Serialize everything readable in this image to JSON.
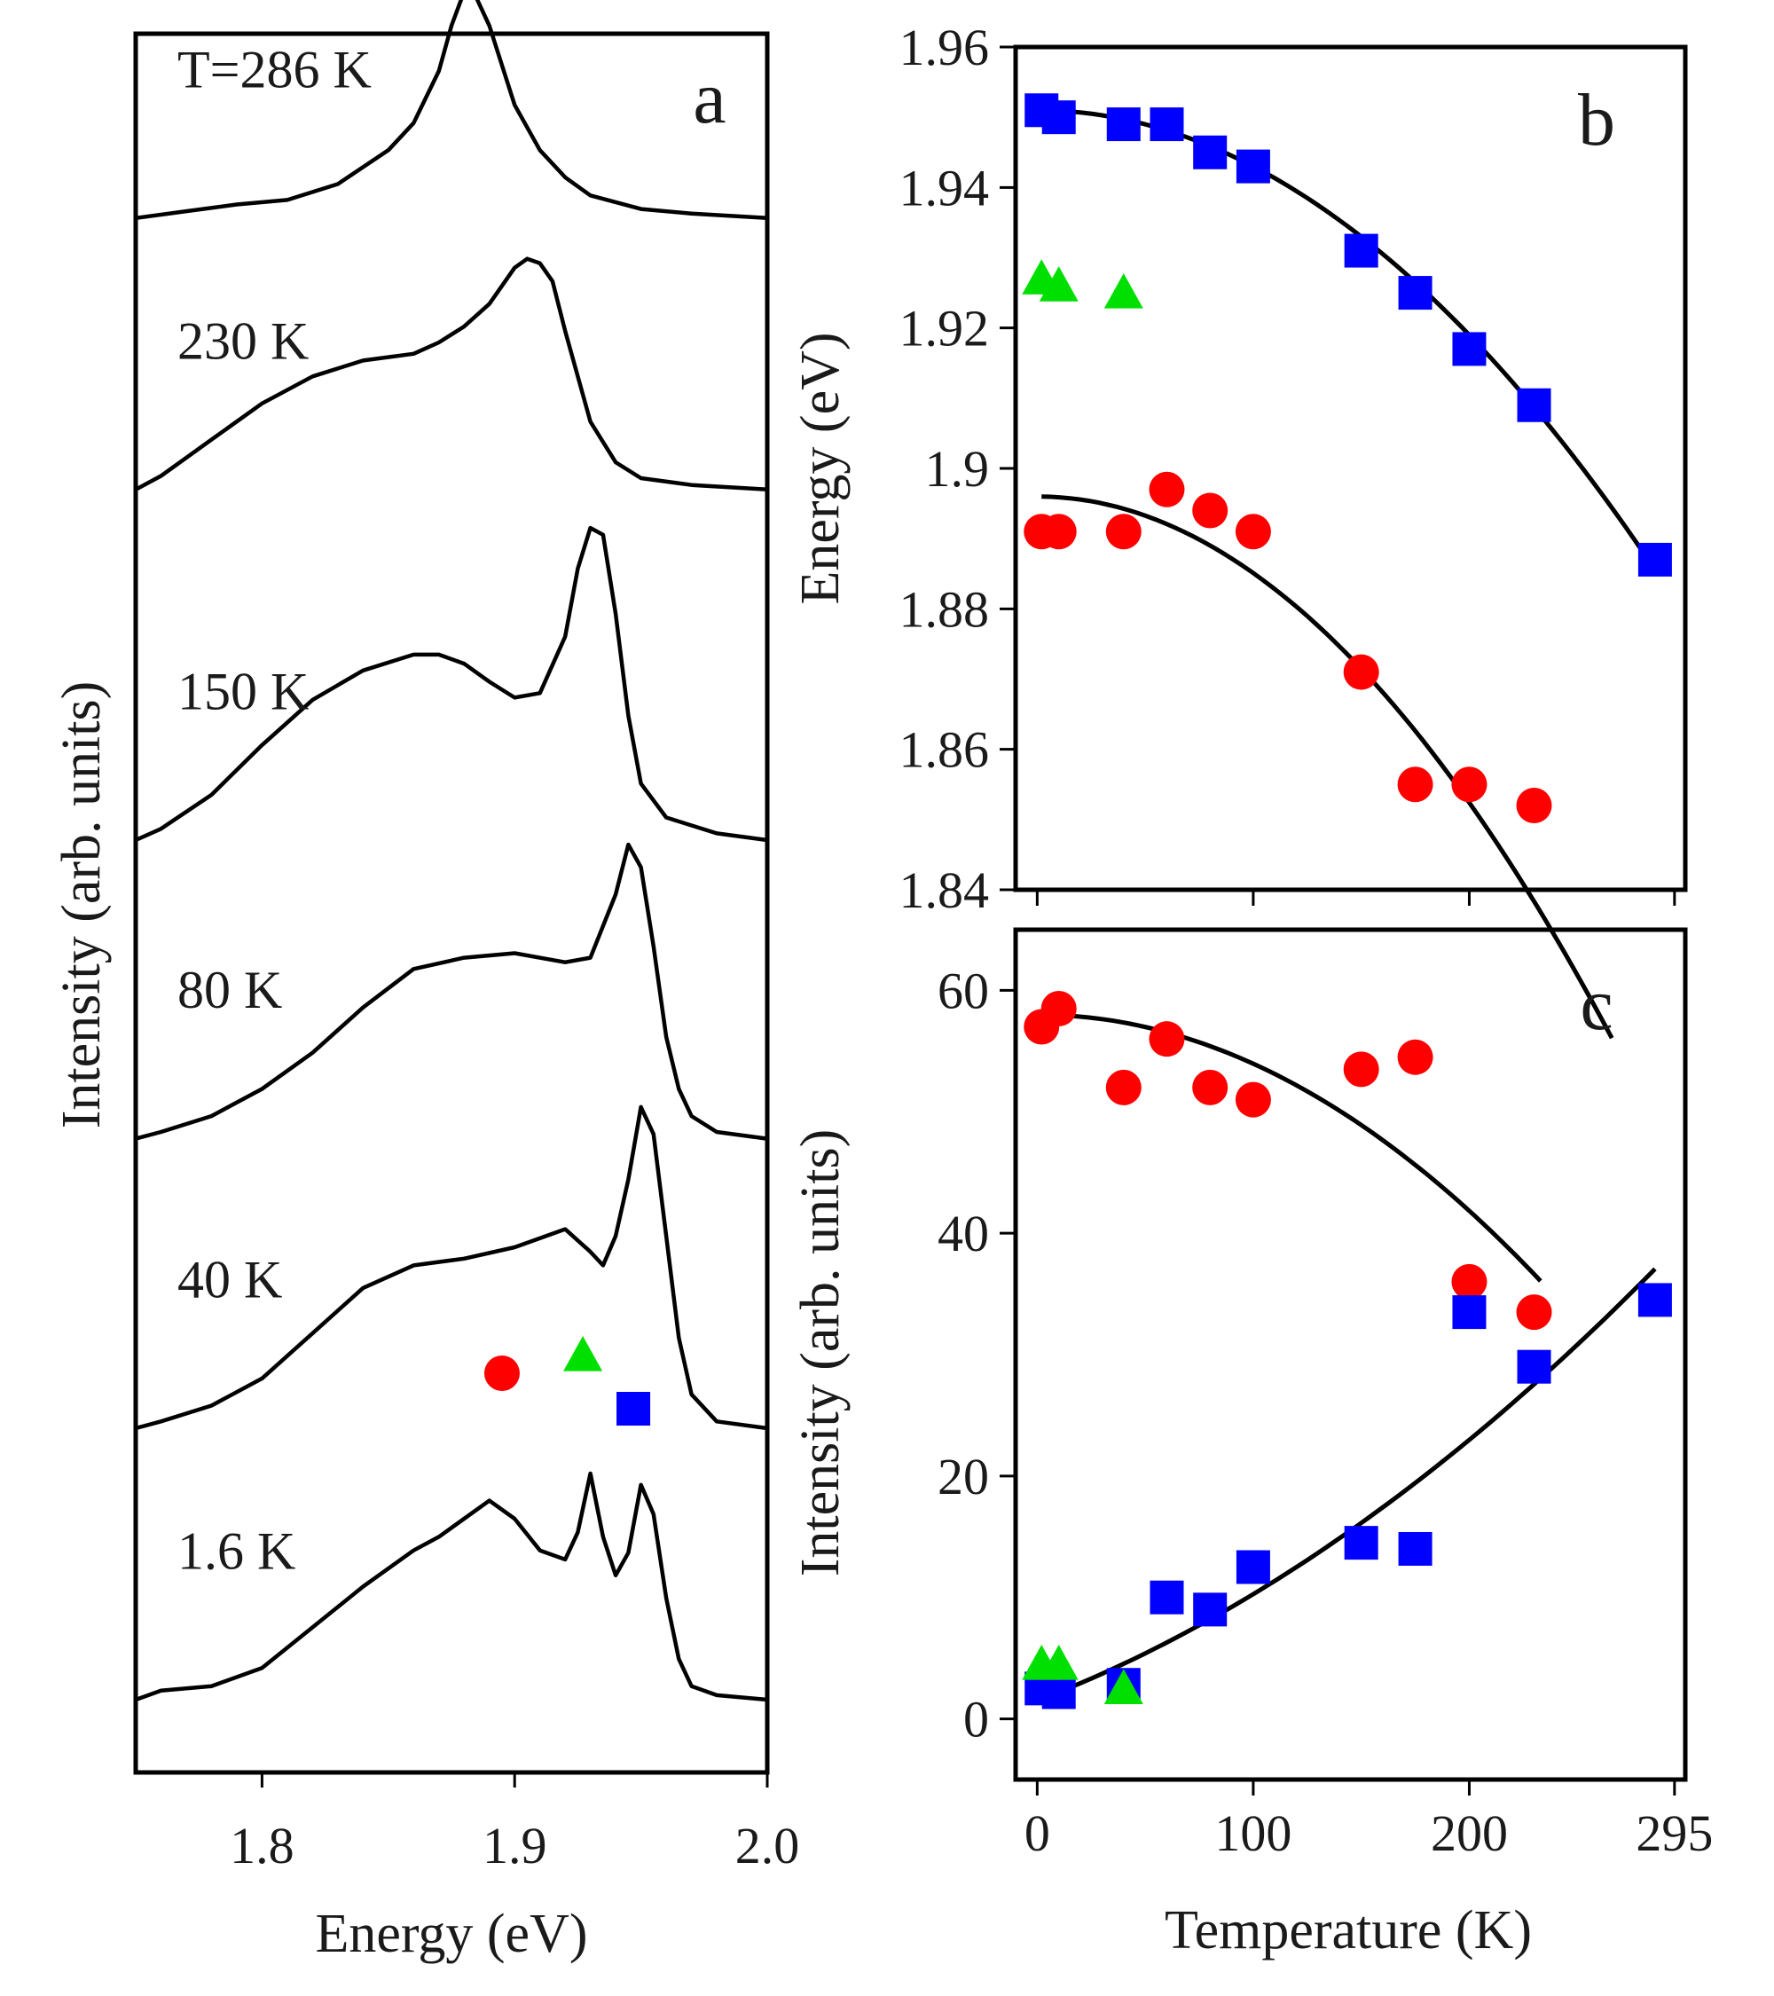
{
  "chart_data": [
    {
      "panel": "a",
      "type": "line",
      "panel_label": "a",
      "xlabel": "Energy (eV)",
      "ylabel": "Intensity  (arb. units)",
      "xlim": [
        1.75,
        2.0
      ],
      "x_ticks": [
        1.8,
        1.9,
        2.0
      ],
      "x_tick_labels": [
        "1.8",
        "1.9",
        "2.0"
      ],
      "grid": false,
      "series": [
        {
          "name": "T=286 K",
          "label": "T=286 K",
          "offset": 5.35,
          "points": [
            [
              1.75,
              0.0
            ],
            [
              1.77,
              0.03
            ],
            [
              1.79,
              0.06
            ],
            [
              1.81,
              0.08
            ],
            [
              1.83,
              0.15
            ],
            [
              1.85,
              0.3
            ],
            [
              1.86,
              0.42
            ],
            [
              1.87,
              0.65
            ],
            [
              1.875,
              0.85
            ],
            [
              1.88,
              1.0
            ],
            [
              1.885,
              0.97
            ],
            [
              1.89,
              0.85
            ],
            [
              1.9,
              0.5
            ],
            [
              1.91,
              0.3
            ],
            [
              1.92,
              0.18
            ],
            [
              1.93,
              0.1
            ],
            [
              1.95,
              0.04
            ],
            [
              1.97,
              0.02
            ],
            [
              2.0,
              0.0
            ]
          ]
        },
        {
          "name": "230 K",
          "label": "230 K",
          "offset": 4.15,
          "points": [
            [
              1.75,
              0.0
            ],
            [
              1.76,
              0.06
            ],
            [
              1.78,
              0.22
            ],
            [
              1.8,
              0.38
            ],
            [
              1.82,
              0.5
            ],
            [
              1.84,
              0.57
            ],
            [
              1.86,
              0.6
            ],
            [
              1.87,
              0.65
            ],
            [
              1.88,
              0.72
            ],
            [
              1.89,
              0.82
            ],
            [
              1.9,
              0.98
            ],
            [
              1.905,
              1.02
            ],
            [
              1.91,
              1.0
            ],
            [
              1.915,
              0.92
            ],
            [
              1.92,
              0.7
            ],
            [
              1.93,
              0.3
            ],
            [
              1.94,
              0.12
            ],
            [
              1.95,
              0.05
            ],
            [
              1.97,
              0.02
            ],
            [
              2.0,
              0.0
            ]
          ]
        },
        {
          "name": "150 K",
          "label": "150 K",
          "offset": 2.6,
          "points": [
            [
              1.75,
              0.0
            ],
            [
              1.76,
              0.05
            ],
            [
              1.78,
              0.2
            ],
            [
              1.8,
              0.42
            ],
            [
              1.82,
              0.62
            ],
            [
              1.84,
              0.75
            ],
            [
              1.86,
              0.82
            ],
            [
              1.87,
              0.82
            ],
            [
              1.88,
              0.78
            ],
            [
              1.89,
              0.7
            ],
            [
              1.9,
              0.63
            ],
            [
              1.91,
              0.65
            ],
            [
              1.92,
              0.9
            ],
            [
              1.925,
              1.2
            ],
            [
              1.93,
              1.38
            ],
            [
              1.935,
              1.35
            ],
            [
              1.94,
              1.0
            ],
            [
              1.945,
              0.55
            ],
            [
              1.95,
              0.25
            ],
            [
              1.96,
              0.1
            ],
            [
              1.98,
              0.03
            ],
            [
              2.0,
              0.0
            ]
          ]
        },
        {
          "name": "80 K",
          "label": "80 K",
          "offset": 1.28,
          "points": [
            [
              1.75,
              0.0
            ],
            [
              1.76,
              0.03
            ],
            [
              1.78,
              0.1
            ],
            [
              1.8,
              0.22
            ],
            [
              1.82,
              0.38
            ],
            [
              1.84,
              0.58
            ],
            [
              1.86,
              0.75
            ],
            [
              1.88,
              0.8
            ],
            [
              1.9,
              0.82
            ],
            [
              1.92,
              0.78
            ],
            [
              1.93,
              0.8
            ],
            [
              1.94,
              1.08
            ],
            [
              1.945,
              1.3
            ],
            [
              1.95,
              1.2
            ],
            [
              1.955,
              0.85
            ],
            [
              1.96,
              0.45
            ],
            [
              1.965,
              0.22
            ],
            [
              1.97,
              0.1
            ],
            [
              1.98,
              0.03
            ],
            [
              2.0,
              0.0
            ]
          ]
        },
        {
          "name": "40 K",
          "label": "40 K",
          "offset": 0.0,
          "points": [
            [
              1.75,
              0.0
            ],
            [
              1.76,
              0.03
            ],
            [
              1.78,
              0.1
            ],
            [
              1.8,
              0.22
            ],
            [
              1.82,
              0.42
            ],
            [
              1.84,
              0.62
            ],
            [
              1.86,
              0.72
            ],
            [
              1.88,
              0.75
            ],
            [
              1.9,
              0.8
            ],
            [
              1.92,
              0.88
            ],
            [
              1.93,
              0.78
            ],
            [
              1.935,
              0.72
            ],
            [
              1.94,
              0.85
            ],
            [
              1.945,
              1.1
            ],
            [
              1.95,
              1.42
            ],
            [
              1.955,
              1.3
            ],
            [
              1.96,
              0.85
            ],
            [
              1.965,
              0.4
            ],
            [
              1.97,
              0.15
            ],
            [
              1.98,
              0.03
            ],
            [
              2.0,
              0.0
            ]
          ]
        },
        {
          "name": "1.6 K",
          "label": "1.6 K",
          "offset": -1.2,
          "points": [
            [
              1.75,
              0.0
            ],
            [
              1.76,
              0.04
            ],
            [
              1.78,
              0.06
            ],
            [
              1.8,
              0.14
            ],
            [
              1.82,
              0.32
            ],
            [
              1.84,
              0.5
            ],
            [
              1.86,
              0.66
            ],
            [
              1.87,
              0.72
            ],
            [
              1.88,
              0.8
            ],
            [
              1.89,
              0.88
            ],
            [
              1.9,
              0.8
            ],
            [
              1.91,
              0.66
            ],
            [
              1.92,
              0.62
            ],
            [
              1.925,
              0.74
            ],
            [
              1.93,
              1.0
            ],
            [
              1.935,
              0.72
            ],
            [
              1.94,
              0.55
            ],
            [
              1.945,
              0.65
            ],
            [
              1.95,
              0.95
            ],
            [
              1.955,
              0.82
            ],
            [
              1.96,
              0.45
            ],
            [
              1.965,
              0.18
            ],
            [
              1.97,
              0.06
            ],
            [
              1.98,
              0.02
            ],
            [
              2.0,
              0.0
            ]
          ]
        }
      ],
      "markers": [
        {
          "shape": "circle",
          "color": "#ff0000",
          "x": 1.895
        },
        {
          "shape": "triangle",
          "color": "#00e000",
          "x": 1.927
        },
        {
          "shape": "square",
          "color": "#0000ff",
          "x": 1.947
        }
      ]
    },
    {
      "panel": "b",
      "type": "scatter",
      "panel_label": "b",
      "xlabel": "",
      "ylabel": "Energy (eV)",
      "xlim": [
        -10,
        300
      ],
      "ylim": [
        1.84,
        1.96
      ],
      "y_ticks": [
        1.84,
        1.86,
        1.88,
        1.9,
        1.92,
        1.94,
        1.96
      ],
      "y_tick_labels": [
        "1.84",
        "1.86",
        "1.88",
        "1.9",
        "1.92",
        "1.94",
        "1.96"
      ],
      "x_ticks": [
        0,
        100,
        200,
        295
      ],
      "grid": false,
      "series": [
        {
          "name": "square",
          "marker": "square",
          "color": "#0000ff",
          "x": [
            2,
            10,
            40,
            60,
            80,
            100,
            150,
            175,
            200,
            230,
            286
          ],
          "y": [
            1.951,
            1.95,
            1.949,
            1.949,
            1.945,
            1.943,
            1.931,
            1.925,
            1.917,
            1.909,
            1.887
          ]
        },
        {
          "name": "circle",
          "marker": "circle",
          "color": "#ff0000",
          "x": [
            2,
            10,
            40,
            60,
            80,
            100,
            150,
            175,
            200,
            230
          ],
          "y": [
            1.891,
            1.891,
            1.891,
            1.897,
            1.894,
            1.891,
            1.871,
            1.855,
            1.855,
            1.852
          ]
        },
        {
          "name": "triangle",
          "marker": "triangle",
          "color": "#00e000",
          "x": [
            2,
            10,
            40
          ],
          "y": [
            1.927,
            1.926,
            1.925
          ]
        }
      ],
      "fits": [
        {
          "a": 1.951,
          "b": 8e-07,
          "x0": 2,
          "x1": 286
        },
        {
          "a": 1.896,
          "b": 1.09e-06,
          "x0": 2,
          "x1": 266
        }
      ]
    },
    {
      "panel": "c",
      "type": "scatter",
      "panel_label": "c",
      "xlabel": "Temperature (K)",
      "ylabel": "Intensity (arb. units)",
      "xlim": [
        -10,
        300
      ],
      "ylim": [
        -5,
        65
      ],
      "y_ticks": [
        0,
        20,
        40,
        60
      ],
      "y_tick_labels": [
        "0",
        "20",
        "40",
        "60"
      ],
      "x_ticks": [
        0,
        100,
        200,
        295
      ],
      "x_tick_labels": [
        "0",
        "100",
        "200",
        "295"
      ],
      "grid": false,
      "series": [
        {
          "name": "circle",
          "marker": "circle",
          "color": "#ff0000",
          "x": [
            2,
            10,
            40,
            60,
            80,
            100,
            150,
            175,
            200,
            230
          ],
          "y": [
            57,
            58.5,
            52,
            56,
            52,
            51,
            53.5,
            54.5,
            36,
            33.5
          ]
        },
        {
          "name": "square",
          "marker": "square",
          "color": "#0000ff",
          "x": [
            2,
            10,
            40,
            60,
            80,
            100,
            150,
            175,
            200,
            230,
            286
          ],
          "y": [
            2.5,
            2.2,
            2.8,
            10,
            9,
            12.5,
            14.5,
            14,
            33.5,
            29,
            34.5
          ]
        },
        {
          "name": "triangle",
          "marker": "triangle",
          "color": "#00e000",
          "x": [
            2,
            10,
            40
          ],
          "y": [
            4.5,
            4.5,
            2.5
          ]
        }
      ],
      "fits": [
        {
          "kind": "quad_down",
          "a": 58,
          "b": 0.000404,
          "x0": 5,
          "x1": 233
        },
        {
          "kind": "quad_up",
          "a": 1.5,
          "c1": 0.068,
          "c2": 0.000197,
          "x0": 2,
          "x1": 286
        }
      ]
    }
  ]
}
